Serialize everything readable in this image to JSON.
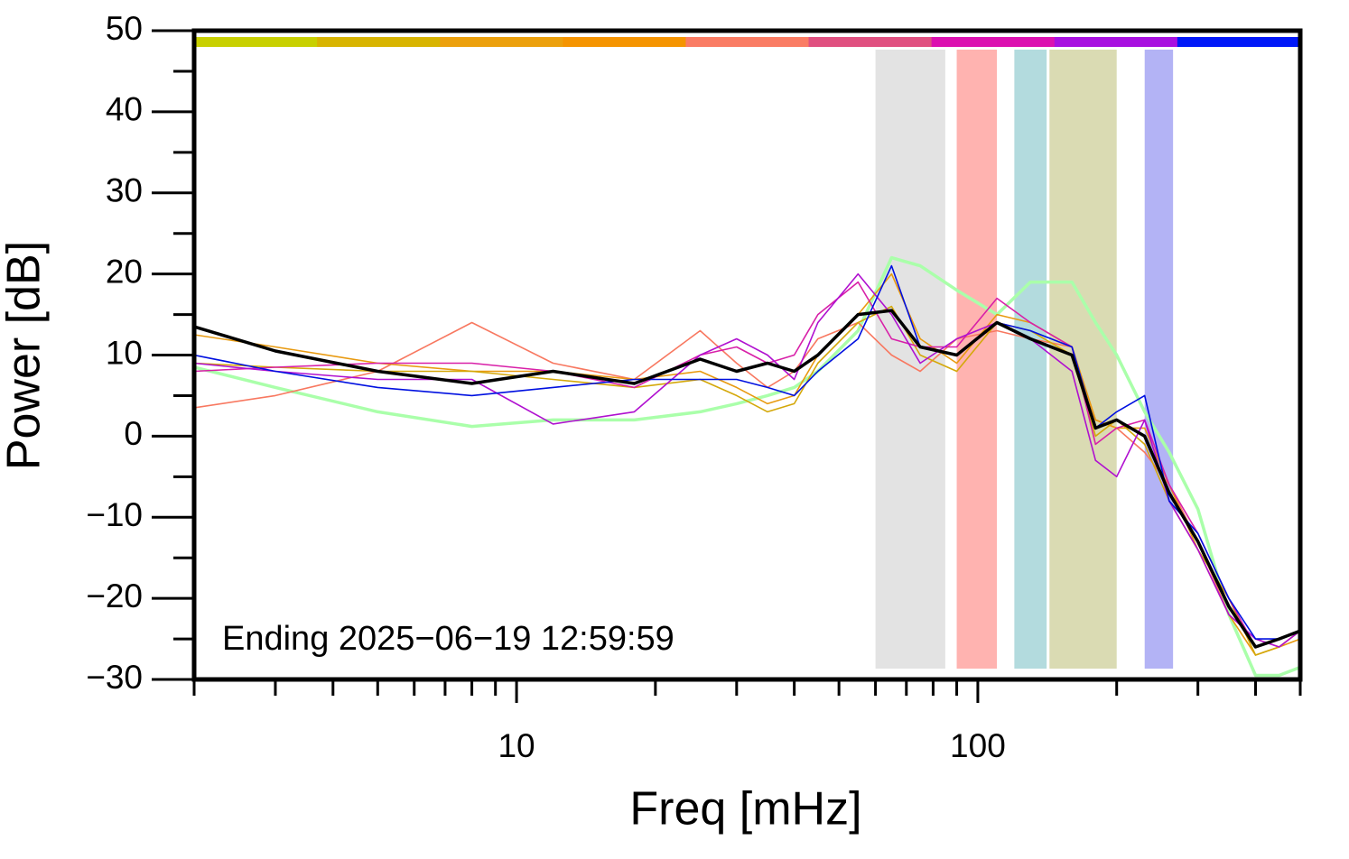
{
  "chart_data": {
    "type": "line",
    "x_label": "Freq [mHz]",
    "y_label": "Power [dB]",
    "annotation": "Ending 2025−06−19 12:59:59",
    "xscale": "log",
    "xlim": [
      2,
      500
    ],
    "ylim": [
      -30,
      50
    ],
    "xticks": [
      10,
      100
    ],
    "xminor": [
      2,
      3,
      4,
      5,
      6,
      7,
      8,
      9,
      20,
      30,
      40,
      50,
      60,
      70,
      80,
      90,
      200,
      300,
      400,
      500
    ],
    "yticks": [
      {
        "value": -30,
        "label": "−30"
      },
      {
        "value": -20,
        "label": "−20"
      },
      {
        "value": -10,
        "label": "−10"
      },
      0,
      10,
      20,
      30,
      40,
      50
    ],
    "yminor": [
      -25,
      -15,
      -5,
      5,
      15,
      25,
      35,
      45
    ],
    "top_bar_colors": [
      "#c8d000",
      "#d8b400",
      "#eca00c",
      "#f59400",
      "#fa7c64",
      "#e05080",
      "#dc10b0",
      "#a810e0",
      "#0018f8"
    ],
    "bands": [
      {
        "from": 60,
        "to": 85,
        "color": "#e3e3e3"
      },
      {
        "from": 90,
        "to": 110,
        "color": "#ffb3b0"
      },
      {
        "from": 120,
        "to": 141,
        "color": "#b3dbde"
      },
      {
        "from": 143,
        "to": 200,
        "color": "#dadbb3"
      },
      {
        "from": 230,
        "to": 265,
        "color": "#b3b3f5"
      }
    ],
    "x": [
      2,
      3,
      5,
      8,
      12,
      18,
      25,
      30,
      35,
      40,
      45,
      55,
      65,
      75,
      90,
      110,
      130,
      160,
      180,
      200,
      230,
      260,
      300,
      350,
      400,
      450,
      500
    ],
    "series": [
      {
        "color": "#aaffaa",
        "emphasis": true,
        "values": [
          8.5,
          6,
          3,
          1.2,
          2,
          2,
          3,
          4,
          5,
          6,
          8,
          13,
          22,
          21,
          18,
          15,
          19,
          19,
          14,
          10,
          3,
          -2,
          -9,
          -22,
          -29.5,
          -29.5,
          -28.5
        ]
      },
      {
        "color": "#f87860",
        "emphasis": false,
        "values": [
          3.5,
          5,
          8,
          14,
          9,
          7,
          13,
          9,
          6,
          8,
          12,
          14,
          10,
          8,
          12,
          13,
          12,
          11,
          2,
          1,
          -2,
          -6,
          -13,
          -22,
          -25,
          -26,
          -24
        ]
      },
      {
        "color": "#e89a10",
        "emphasis": false,
        "values": [
          12.5,
          11,
          9,
          8,
          8,
          7,
          8,
          6,
          4,
          5,
          10,
          15,
          20,
          12,
          9,
          15,
          14,
          11,
          2,
          1,
          1,
          -6,
          -14,
          -22,
          -27,
          -26,
          -25
        ]
      },
      {
        "color": "#d4a80a",
        "emphasis": false,
        "values": [
          9,
          8.5,
          8,
          8,
          7,
          6,
          7,
          5,
          3,
          4,
          9,
          14,
          16,
          10,
          8,
          14,
          13,
          10,
          0,
          2,
          -1,
          -8,
          -14,
          -20,
          -27,
          -26,
          -24
        ]
      },
      {
        "color": "#d820a8",
        "emphasis": false,
        "values": [
          8,
          8.5,
          9,
          9,
          8,
          6,
          10,
          11,
          9,
          10,
          15,
          19,
          12,
          11,
          11,
          17,
          14,
          11,
          -1,
          1,
          2,
          -6,
          -12,
          -20,
          -26,
          -25,
          -24
        ]
      },
      {
        "color": "#b010d0",
        "emphasis": false,
        "values": [
          9,
          8,
          7,
          7,
          1.5,
          3,
          10,
          12,
          10,
          7,
          14,
          20,
          15,
          9,
          12,
          14,
          12,
          8,
          -3,
          -5,
          2,
          -8,
          -14,
          -22,
          -25,
          -26,
          -24
        ]
      },
      {
        "color": "#0010e0",
        "emphasis": false,
        "values": [
          10,
          8,
          6,
          5,
          6,
          7,
          7,
          7,
          6,
          5,
          8,
          12,
          21,
          11,
          10,
          14,
          13,
          11,
          1,
          3,
          5,
          -8,
          -12,
          -20,
          -25,
          -25,
          -24
        ]
      },
      {
        "color": "#000000",
        "emphasis": true,
        "values": [
          13.5,
          10.5,
          8,
          6.5,
          8,
          6.5,
          9.5,
          8,
          9,
          8,
          10,
          15,
          15.5,
          11,
          10,
          14,
          12,
          10,
          1,
          2,
          0,
          -7,
          -13,
          -21,
          -26,
          -25,
          -24
        ]
      }
    ]
  }
}
